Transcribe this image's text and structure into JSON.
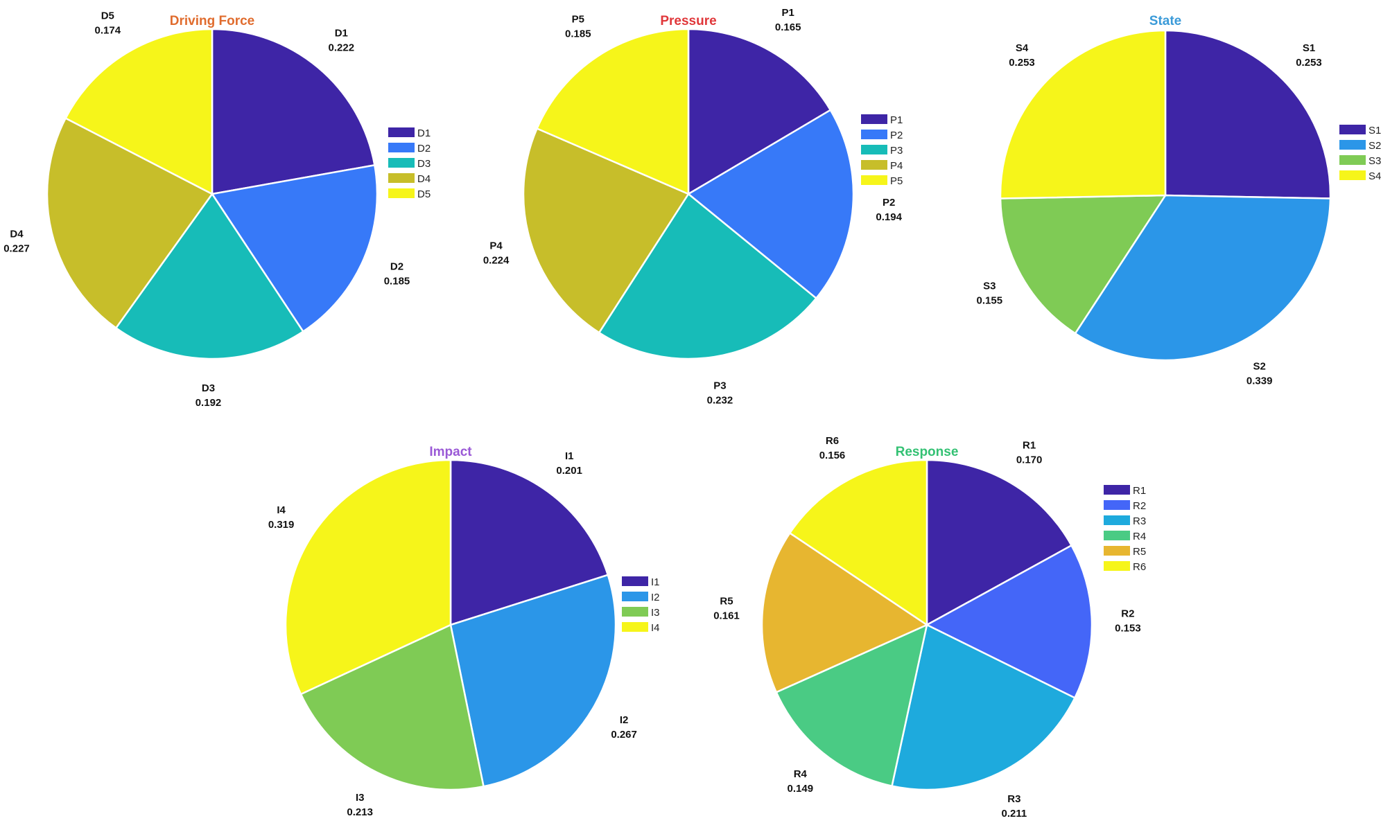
{
  "chart_data": [
    {
      "type": "pie",
      "title": "Driving Force",
      "title_color": "#e06c2e",
      "categories": [
        "D1",
        "D2",
        "D3",
        "D4",
        "D5"
      ],
      "values": [
        0.222,
        0.185,
        0.192,
        0.227,
        0.174
      ],
      "colors": [
        "#3e25a6",
        "#3779f8",
        "#17bcb8",
        "#c7be2a",
        "#f6f51a"
      ],
      "legend": "right"
    },
    {
      "type": "pie",
      "title": "Pressure",
      "title_color": "#e0373a",
      "categories": [
        "P1",
        "P2",
        "P3",
        "P4",
        "P5"
      ],
      "values": [
        0.165,
        0.194,
        0.232,
        0.224,
        0.185
      ],
      "colors": [
        "#3e25a6",
        "#3779f8",
        "#17bcb8",
        "#c7be2a",
        "#f6f51a"
      ],
      "legend": "right"
    },
    {
      "type": "pie",
      "title": "State",
      "title_color": "#3a9ad8",
      "categories": [
        "S1",
        "S2",
        "S3",
        "S4"
      ],
      "values": [
        0.253,
        0.339,
        0.155,
        0.253
      ],
      "colors": [
        "#3e25a6",
        "#2b96e8",
        "#7fcb55",
        "#f6f51a"
      ],
      "legend": "right"
    },
    {
      "type": "pie",
      "title": "Impact",
      "title_color": "#9a59d6",
      "categories": [
        "I1",
        "I2",
        "I3",
        "I4"
      ],
      "values": [
        0.201,
        0.267,
        0.213,
        0.319
      ],
      "colors": [
        "#3e25a6",
        "#2b96e8",
        "#7fcb55",
        "#f6f51a"
      ],
      "legend": "right"
    },
    {
      "type": "pie",
      "title": "Response",
      "title_color": "#33c173",
      "categories": [
        "R1",
        "R2",
        "R3",
        "R4",
        "R5",
        "R6"
      ],
      "values": [
        0.17,
        0.153,
        0.211,
        0.149,
        0.161,
        0.156
      ],
      "colors": [
        "#3e25a6",
        "#4466f8",
        "#1eaadd",
        "#4acb84",
        "#e7b630",
        "#f6f51a"
      ],
      "legend": "right"
    }
  ]
}
